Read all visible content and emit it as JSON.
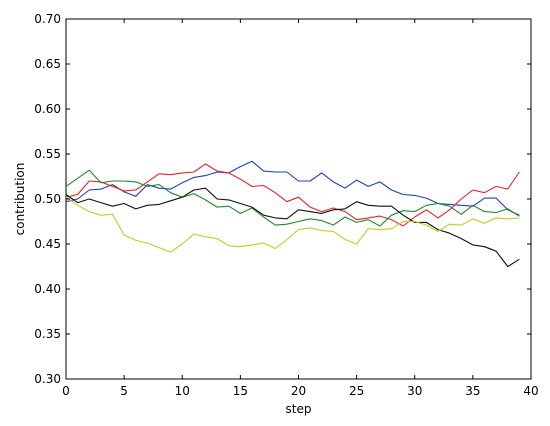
{
  "chart_data": {
    "type": "line",
    "title": "",
    "xlabel": "step",
    "ylabel": "contribution",
    "xlim": [
      0,
      40
    ],
    "ylim": [
      0.3,
      0.7
    ],
    "xticks": [
      0,
      5,
      10,
      15,
      20,
      25,
      30,
      35,
      40
    ],
    "yticks": [
      0.3,
      0.35,
      0.4,
      0.45,
      0.5,
      0.55,
      0.6,
      0.65,
      0.7
    ],
    "grid": false,
    "legend": "none",
    "x": [
      0,
      1,
      2,
      3,
      4,
      5,
      6,
      7,
      8,
      9,
      10,
      11,
      12,
      13,
      14,
      15,
      16,
      17,
      18,
      19,
      20,
      21,
      22,
      23,
      24,
      25,
      26,
      27,
      28,
      29,
      30,
      31,
      32,
      33,
      34,
      35,
      36,
      37,
      38,
      39
    ],
    "series": [
      {
        "color": "#1f3fbf",
        "values": [
          0.497,
          0.5,
          0.51,
          0.511,
          0.516,
          0.508,
          0.503,
          0.516,
          0.512,
          0.511,
          0.518,
          0.524,
          0.526,
          0.53,
          0.529,
          0.536,
          0.542,
          0.531,
          0.53,
          0.53,
          0.52,
          0.52,
          0.529,
          0.519,
          0.512,
          0.521,
          0.514,
          0.519,
          0.51,
          0.505,
          0.504,
          0.501,
          0.495,
          0.494,
          0.493,
          0.492,
          0.501,
          0.501,
          0.488,
          0.482
        ]
      },
      {
        "color": "#e8232a",
        "values": [
          0.502,
          0.505,
          0.52,
          0.519,
          0.514,
          0.509,
          0.51,
          0.519,
          0.528,
          0.527,
          0.529,
          0.53,
          0.539,
          0.531,
          0.529,
          0.522,
          0.514,
          0.515,
          0.507,
          0.497,
          0.502,
          0.491,
          0.486,
          0.49,
          0.486,
          0.477,
          0.479,
          0.481,
          0.477,
          0.47,
          0.48,
          0.488,
          0.479,
          0.488,
          0.5,
          0.51,
          0.507,
          0.514,
          0.511,
          0.53
        ]
      },
      {
        "color": "#1f8a2e",
        "values": [
          0.514,
          0.523,
          0.532,
          0.518,
          0.52,
          0.52,
          0.519,
          0.514,
          0.516,
          0.507,
          0.502,
          0.506,
          0.499,
          0.491,
          0.492,
          0.484,
          0.49,
          0.48,
          0.471,
          0.472,
          0.475,
          0.478,
          0.476,
          0.471,
          0.48,
          0.474,
          0.477,
          0.47,
          0.482,
          0.487,
          0.486,
          0.493,
          0.495,
          0.492,
          0.483,
          0.493,
          0.486,
          0.485,
          0.489,
          0.481
        ]
      },
      {
        "color": "#111111",
        "values": [
          0.505,
          0.496,
          0.5,
          0.496,
          0.492,
          0.495,
          0.489,
          0.493,
          0.494,
          0.498,
          0.502,
          0.51,
          0.512,
          0.5,
          0.499,
          0.495,
          0.491,
          0.482,
          0.479,
          0.478,
          0.488,
          0.486,
          0.484,
          0.488,
          0.489,
          0.497,
          0.493,
          0.492,
          0.492,
          0.482,
          0.474,
          0.474,
          0.466,
          0.462,
          0.456,
          0.449,
          0.447,
          0.442,
          0.425,
          0.433
        ]
      },
      {
        "color": "#c8c828",
        "values": [
          0.502,
          0.493,
          0.486,
          0.482,
          0.483,
          0.46,
          0.454,
          0.451,
          0.446,
          0.441,
          0.45,
          0.461,
          0.458,
          0.456,
          0.448,
          0.447,
          0.449,
          0.451,
          0.445,
          0.455,
          0.466,
          0.468,
          0.465,
          0.464,
          0.455,
          0.45,
          0.467,
          0.466,
          0.467,
          0.475,
          0.475,
          0.471,
          0.464,
          0.472,
          0.471,
          0.478,
          0.473,
          0.479,
          0.478,
          0.479
        ]
      }
    ]
  }
}
